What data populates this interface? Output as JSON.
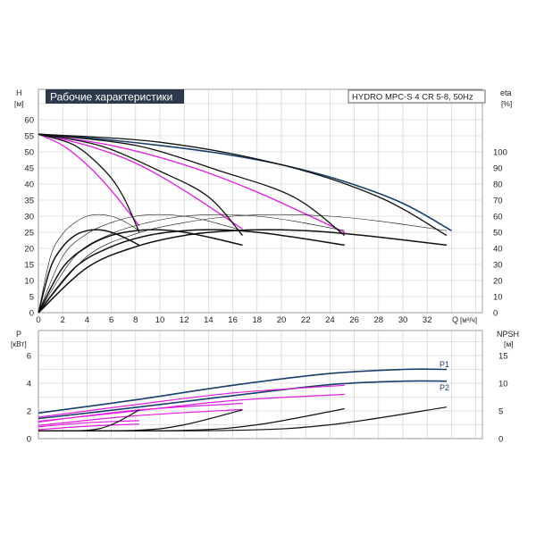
{
  "title": "Рабочие характеристики",
  "model": "HYDRO MPC-S 4 CR 5-8, 50Hz",
  "colors": {
    "duty": "#1a3d6b",
    "magenta": "#e21ce0",
    "black": "#111111",
    "grid": "#c8c8c8",
    "title_bg": "#2c3a4c"
  },
  "chart_data": [
    {
      "type": "line",
      "y_axis_left": {
        "label": "H",
        "unit": "[м]",
        "ticks": [
          "0",
          "5",
          "10",
          "15",
          "20",
          "25",
          "30",
          "35",
          "40",
          "45",
          "50",
          "55",
          "60"
        ],
        "lim": [
          0,
          60
        ]
      },
      "y_axis_right": {
        "label": "eta",
        "unit": "[%]",
        "ticks": [
          "0",
          "10",
          "20",
          "30",
          "40",
          "50",
          "60",
          "70",
          "80",
          "90",
          "100"
        ],
        "lim": [
          0,
          120
        ]
      },
      "x_axis": {
        "label": "Q",
        "unit": "[м³/ч]",
        "ticks": [
          "0",
          "2",
          "4",
          "6",
          "8",
          "10",
          "12",
          "14",
          "16",
          "18",
          "20",
          "22",
          "24",
          "26",
          "28",
          "30",
          "32"
        ],
        "lim": [
          0,
          36
        ]
      },
      "series": [
        {
          "kind": "head",
          "color": "duty",
          "points": [
            [
              0,
              55.5
            ],
            [
              5,
              54
            ],
            [
              10,
              52
            ],
            [
              15,
              49.5
            ],
            [
              20,
              46
            ],
            [
              25,
              41
            ],
            [
              30,
              34
            ],
            [
              34,
              25.5
            ]
          ]
        },
        {
          "kind": "head",
          "color": "magenta",
          "points": [
            [
              0,
              55.5
            ],
            [
              2,
              52
            ],
            [
              4,
              46
            ],
            [
              6,
              38
            ],
            [
              8.3,
              27
            ]
          ]
        },
        {
          "kind": "head",
          "color": "magenta",
          "points": [
            [
              0,
              55.5
            ],
            [
              4,
              52
            ],
            [
              8,
              46.5
            ],
            [
              12,
              38
            ],
            [
              16.8,
              26
            ]
          ]
        },
        {
          "kind": "head",
          "color": "magenta",
          "points": [
            [
              0,
              55.5
            ],
            [
              6,
              52
            ],
            [
              12,
              46
            ],
            [
              18,
              37.5
            ],
            [
              25.2,
              25
            ]
          ]
        },
        {
          "kind": "head",
          "color": "black",
          "points": [
            [
              0,
              55.5
            ],
            [
              3,
              52
            ],
            [
              5.5,
              44
            ],
            [
              7,
              36
            ],
            [
              8.3,
              25
            ]
          ]
        },
        {
          "kind": "head",
          "color": "black",
          "points": [
            [
              0,
              55.5
            ],
            [
              5,
              52
            ],
            [
              10,
              44
            ],
            [
              14,
              36
            ],
            [
              16.8,
              24
            ]
          ]
        },
        {
          "kind": "head",
          "color": "black",
          "points": [
            [
              0,
              55.5
            ],
            [
              8,
              52
            ],
            [
              15,
              44
            ],
            [
              21,
              36
            ],
            [
              25.2,
              24
            ]
          ]
        },
        {
          "kind": "head",
          "color": "black",
          "points": [
            [
              0,
              55.5
            ],
            [
              10,
              53
            ],
            [
              20,
              46
            ],
            [
              28,
              36
            ],
            [
              33.6,
              24
            ]
          ]
        },
        {
          "kind": "eta",
          "color": "black",
          "width": 1.5,
          "points": [
            [
              0,
              0
            ],
            [
              1,
              28
            ],
            [
              2,
              41
            ],
            [
              3,
              48
            ],
            [
              4,
              51
            ],
            [
              5,
              51.5
            ],
            [
              6,
              50
            ],
            [
              7,
              47
            ],
            [
              8.3,
              42
            ]
          ]
        },
        {
          "kind": "eta",
          "color": "black",
          "width": 1.5,
          "points": [
            [
              0,
              0
            ],
            [
              2,
              28
            ],
            [
              4,
              41
            ],
            [
              6,
              48
            ],
            [
              8,
              51
            ],
            [
              10,
              51.5
            ],
            [
              12,
              50
            ],
            [
              14,
              47
            ],
            [
              16.8,
              42
            ]
          ]
        },
        {
          "kind": "eta",
          "color": "black",
          "width": 1.5,
          "points": [
            [
              0,
              0
            ],
            [
              3,
              28
            ],
            [
              6,
              41
            ],
            [
              9,
              48
            ],
            [
              12,
              51
            ],
            [
              15,
              51.5
            ],
            [
              18,
              50
            ],
            [
              21,
              47
            ],
            [
              25.2,
              42
            ]
          ]
        },
        {
          "kind": "eta",
          "color": "black",
          "width": 1.5,
          "points": [
            [
              0,
              0
            ],
            [
              4,
              28
            ],
            [
              8,
              41
            ],
            [
              12,
              48
            ],
            [
              16,
              51
            ],
            [
              20,
              51.5
            ],
            [
              24,
              50
            ],
            [
              28,
              47
            ],
            [
              33.6,
              42
            ]
          ]
        },
        {
          "kind": "eta",
          "color": "black",
          "width": 0.6,
          "points": [
            [
              0,
              0
            ],
            [
              1,
              35
            ],
            [
              2,
              49
            ],
            [
              3,
              56
            ],
            [
              4,
              60
            ],
            [
              5,
              61
            ],
            [
              6,
              60
            ],
            [
              7,
              57
            ],
            [
              8.3,
              51
            ]
          ]
        },
        {
          "kind": "eta",
          "color": "black",
          "width": 0.6,
          "points": [
            [
              0,
              0
            ],
            [
              2,
              35
            ],
            [
              4,
              49
            ],
            [
              6,
              56
            ],
            [
              8,
              60
            ],
            [
              10,
              61
            ],
            [
              12,
              60
            ],
            [
              14,
              57
            ],
            [
              16.8,
              51
            ]
          ]
        },
        {
          "kind": "eta",
          "color": "black",
          "width": 0.6,
          "points": [
            [
              0,
              0
            ],
            [
              3,
              35
            ],
            [
              6,
              49
            ],
            [
              9,
              56
            ],
            [
              12,
              60
            ],
            [
              15,
              61
            ],
            [
              18,
              60
            ],
            [
              21,
              57
            ],
            [
              25.2,
              51
            ]
          ]
        },
        {
          "kind": "eta",
          "color": "black",
          "width": 0.6,
          "points": [
            [
              0,
              0
            ],
            [
              4,
              35
            ],
            [
              8,
              49
            ],
            [
              12,
              56
            ],
            [
              16,
              60
            ],
            [
              20,
              61
            ],
            [
              24,
              60
            ],
            [
              28,
              57
            ],
            [
              33.6,
              51
            ]
          ]
        }
      ]
    },
    {
      "type": "line",
      "y_axis_left": {
        "label": "P",
        "unit": "[кВт]",
        "ticks": [
          "0",
          "2",
          "4",
          "6"
        ],
        "lim": [
          0,
          7
        ]
      },
      "y_axis_right": {
        "label": "NPSH",
        "unit": "[м]",
        "ticks": [
          "0",
          "5",
          "10",
          "15"
        ],
        "lim": [
          0,
          17.5
        ]
      },
      "x_axis": {
        "lim": [
          0,
          36
        ]
      },
      "labels": [
        "P1",
        "P2"
      ],
      "series": [
        {
          "kind": "P1",
          "color": "duty",
          "points": [
            [
              0,
              1.85
            ],
            [
              8,
              2.8
            ],
            [
              16,
              3.85
            ],
            [
              24,
              4.7
            ],
            [
              30,
              5.0
            ],
            [
              33.6,
              5.0
            ]
          ]
        },
        {
          "kind": "P2",
          "color": "duty",
          "points": [
            [
              0,
              1.45
            ],
            [
              8,
              2.25
            ],
            [
              16,
              3.1
            ],
            [
              24,
              3.9
            ],
            [
              30,
              4.15
            ],
            [
              33.6,
              4.15
            ]
          ]
        },
        {
          "kind": "P1",
          "color": "magenta",
          "points": [
            [
              0,
              1.55
            ],
            [
              8,
              2.45
            ],
            [
              16,
              3.3
            ],
            [
              25.2,
              3.85
            ]
          ]
        },
        {
          "kind": "P2",
          "color": "magenta",
          "points": [
            [
              0,
              1.25
            ],
            [
              8,
              2.0
            ],
            [
              16,
              2.75
            ],
            [
              25.2,
              3.2
            ]
          ]
        },
        {
          "kind": "P1",
          "color": "magenta",
          "points": [
            [
              0,
              1.2
            ],
            [
              8,
              2.05
            ],
            [
              16.8,
              2.55
            ]
          ]
        },
        {
          "kind": "P2",
          "color": "magenta",
          "points": [
            [
              0,
              0.95
            ],
            [
              8,
              1.65
            ],
            [
              16.8,
              2.1
            ]
          ]
        },
        {
          "kind": "P1",
          "color": "magenta",
          "points": [
            [
              0,
              0.85
            ],
            [
              4,
              1.15
            ],
            [
              8.3,
              1.3
            ]
          ]
        },
        {
          "kind": "P2",
          "color": "magenta",
          "points": [
            [
              0,
              0.65
            ],
            [
              4,
              0.9
            ],
            [
              8.3,
              1.05
            ]
          ]
        },
        {
          "kind": "NPSH",
          "color": "black",
          "points": [
            [
              0,
              1.4
            ],
            [
              4,
              1.5
            ],
            [
              6,
              2.5
            ],
            [
              8.3,
              5.2
            ]
          ]
        },
        {
          "kind": "NPSH",
          "color": "black",
          "points": [
            [
              0,
              1.4
            ],
            [
              8,
              1.5
            ],
            [
              12,
              2.5
            ],
            [
              16.8,
              5.2
            ]
          ]
        },
        {
          "kind": "NPSH",
          "color": "black",
          "points": [
            [
              0,
              1.4
            ],
            [
              12,
              1.5
            ],
            [
              18,
              2.5
            ],
            [
              25.2,
              5.4
            ]
          ]
        },
        {
          "kind": "NPSH",
          "color": "black",
          "points": [
            [
              0,
              1.4
            ],
            [
              16,
              1.5
            ],
            [
              24,
              2.5
            ],
            [
              33.6,
              5.7
            ]
          ]
        }
      ]
    }
  ]
}
